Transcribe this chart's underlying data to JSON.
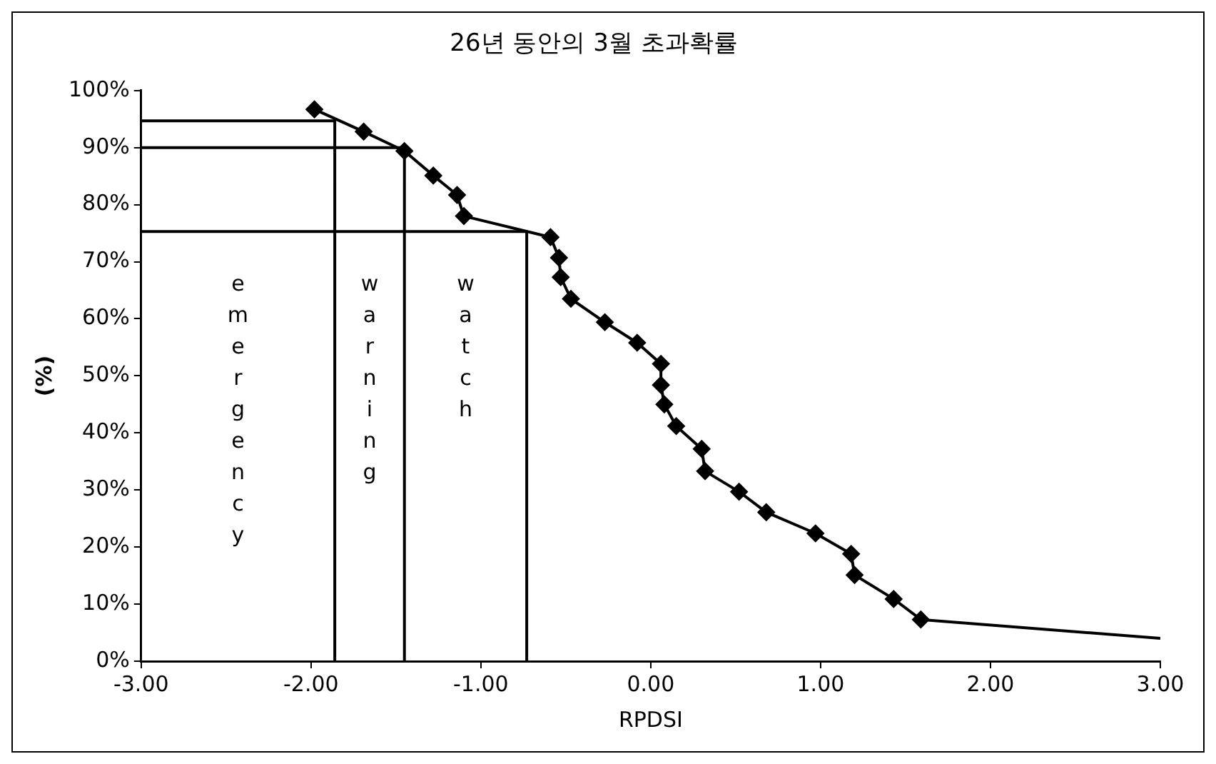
{
  "chart_data": {
    "type": "line",
    "title": "26년 동안의 3월 초과확률",
    "xlabel": "RPDSI",
    "ylabel": "(%)",
    "marker": "diamond",
    "grid": false,
    "legend": false,
    "line_style": "solid",
    "xlim": [
      -3,
      3
    ],
    "xticks": [
      {
        "value": -3,
        "label": "-3.00"
      },
      {
        "value": -2,
        "label": "-2.00"
      },
      {
        "value": -1,
        "label": "-1.00"
      },
      {
        "value": 0,
        "label": "0.00"
      },
      {
        "value": 1,
        "label": "1.00"
      },
      {
        "value": 2,
        "label": "2.00"
      },
      {
        "value": 3,
        "label": "3.00"
      }
    ],
    "ylim": [
      0,
      100
    ],
    "yticks": [
      {
        "value": 0,
        "label": "0%"
      },
      {
        "value": 10,
        "label": "10%"
      },
      {
        "value": 20,
        "label": "20%"
      },
      {
        "value": 30,
        "label": "30%"
      },
      {
        "value": 40,
        "label": "40%"
      },
      {
        "value": 50,
        "label": "50%"
      },
      {
        "value": 60,
        "label": "60%"
      },
      {
        "value": 70,
        "label": "70%"
      },
      {
        "value": 80,
        "label": "80%"
      },
      {
        "value": 90,
        "label": "90%"
      },
      {
        "value": 100,
        "label": "100%"
      }
    ],
    "series": [
      {
        "color": "#000000",
        "x": [
          -1.98,
          -1.69,
          -1.45,
          -1.28,
          -1.14,
          -1.1,
          -0.59,
          -0.54,
          -0.53,
          -0.47,
          -0.27,
          -0.08,
          0.06,
          0.06,
          0.08,
          0.15,
          0.3,
          0.32,
          0.52,
          0.68,
          0.97,
          1.18,
          1.2,
          1.43,
          1.59
        ],
        "values": [
          96.7,
          92.8,
          89.4,
          85.1,
          81.7,
          78,
          74.3,
          70.7,
          67.3,
          63.5,
          59.4,
          55.8,
          52.1,
          48.4,
          45,
          41.2,
          37.2,
          33.3,
          29.7,
          26.1,
          22.4,
          18.8,
          15.1,
          10.9,
          7.3
        ]
      },
      {
        "color": "#000000",
        "marker": "none",
        "x": [
          1.59,
          3
        ],
        "values": [
          7.3,
          4
        ]
      },
      {
        "color": "#000000",
        "marker": "none",
        "x": [
          -3,
          -1.86,
          -1.86
        ],
        "values": [
          94.7,
          94.7,
          0
        ]
      },
      {
        "color": "#000000",
        "marker": "none",
        "x": [
          -3,
          -1.45,
          -1.45
        ],
        "values": [
          90,
          90,
          0
        ]
      },
      {
        "color": "#000000",
        "marker": "none",
        "x": [
          -3,
          -0.73,
          -0.73
        ],
        "values": [
          75.3,
          75.3,
          0
        ]
      }
    ],
    "annotations": [
      "emergency",
      "warning",
      "watch"
    ]
  }
}
